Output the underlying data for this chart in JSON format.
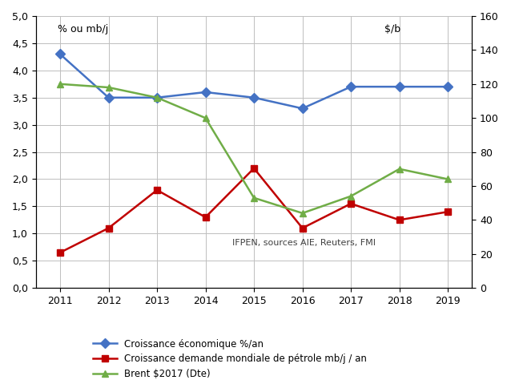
{
  "years": [
    2011,
    2012,
    2013,
    2014,
    2015,
    2016,
    2017,
    2018,
    2019
  ],
  "croissance_eco": [
    4.3,
    3.5,
    3.5,
    3.6,
    3.5,
    3.3,
    3.7,
    3.7,
    3.7
  ],
  "croissance_demande": [
    0.65,
    1.1,
    1.8,
    1.3,
    2.2,
    1.1,
    1.55,
    1.25,
    1.4
  ],
  "brent": [
    120,
    118,
    112,
    100,
    53,
    44,
    54,
    70,
    64
  ],
  "left_ylim": [
    0,
    5.0
  ],
  "right_ylim": [
    0,
    160
  ],
  "left_yticks": [
    0.0,
    0.5,
    1.0,
    1.5,
    2.0,
    2.5,
    3.0,
    3.5,
    4.0,
    4.5,
    5.0
  ],
  "right_yticks": [
    0,
    20,
    40,
    60,
    80,
    100,
    120,
    140,
    160
  ],
  "left_ylabel_text": "% ou mb/j",
  "right_ylabel_text": "$/b",
  "annotation": "IFPEN, sources AIE, Reuters, FMI",
  "legend_labels": [
    "Croissance économique %/an",
    "Croissance demande mondiale de pétrole mb/j / an",
    "Brent $2017 (Dte)"
  ],
  "colors": {
    "eco": "#4472C4",
    "demande": "#C00000",
    "brent": "#70AD47"
  },
  "marker_eco": "D",
  "marker_demande": "s",
  "marker_brent": "^",
  "linewidth": 1.8,
  "markersize": 6,
  "bg_color": "#FFFFFF",
  "grid_color": "#BFBFBF",
  "left_ytick_labels": [
    "0,0",
    "0,5",
    "1,0",
    "1,5",
    "2,0",
    "2,5",
    "3,0",
    "3,5",
    "4,0",
    "4,5",
    "5,0"
  ]
}
